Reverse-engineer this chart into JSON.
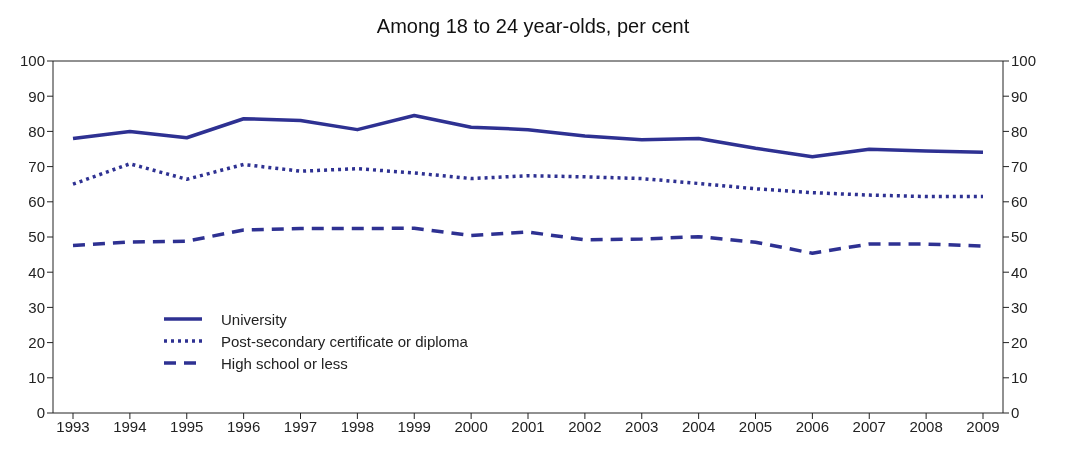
{
  "chart_data": {
    "type": "line",
    "title": "Among 18 to 24 year-olds, per cent",
    "categories": [
      "1993",
      "1994",
      "1995",
      "1996",
      "1997",
      "1998",
      "1999",
      "2000",
      "2001",
      "2002",
      "2003",
      "2004",
      "2005",
      "2006",
      "2007",
      "2008",
      "2009"
    ],
    "series": [
      {
        "name": "University",
        "color": "#2e3192",
        "line_style": "solid",
        "values": [
          78,
          80,
          78.2,
          83.6,
          83.1,
          80.5,
          84.5,
          81.2,
          80.5,
          78.7,
          77.6,
          78,
          75.2,
          72.8,
          74.9,
          74.4,
          74.1
        ]
      },
      {
        "name": "Post-secondary certificate or diploma",
        "color": "#2e3192",
        "line_style": "dotted",
        "values": [
          65,
          70.8,
          66.4,
          70.6,
          68.7,
          69.4,
          68.2,
          66.6,
          67.4,
          67.1,
          66.6,
          65.2,
          63.7,
          62.6,
          61.9,
          61.5,
          61.5
        ]
      },
      {
        "name": "High school or less",
        "color": "#2e3192",
        "line_style": "dashed",
        "values": [
          47.6,
          48.6,
          48.8,
          52,
          52.4,
          52.4,
          52.5,
          50.4,
          51.4,
          49.2,
          49.4,
          50.1,
          48.5,
          45.4,
          48,
          48,
          47.4
        ]
      }
    ],
    "ylim": [
      0,
      100
    ],
    "yticks": [
      0,
      10,
      20,
      30,
      40,
      50,
      60,
      70,
      80,
      90,
      100
    ],
    "y2lim": [
      0,
      100
    ],
    "y2ticks": [
      0,
      10,
      20,
      30,
      40,
      50,
      60,
      70,
      80,
      90,
      100
    ],
    "grid": false,
    "legend": "bottom left",
    "marker": "none"
  }
}
